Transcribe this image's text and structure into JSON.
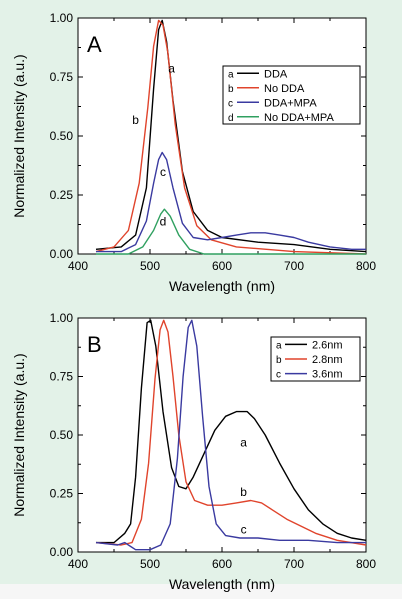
{
  "chart_data": [
    {
      "type": "line",
      "panel_label": "A",
      "xlabel": "Wavelength (nm)",
      "ylabel": "Normalized Intensity (a.u.)",
      "xlim": [
        400,
        800
      ],
      "ylim": [
        0,
        1.0
      ],
      "xticks": [
        400,
        500,
        600,
        700,
        800
      ],
      "yticks": [
        0.0,
        0.25,
        0.5,
        0.75,
        1.0
      ],
      "xtick_labels": [
        "400",
        "500",
        "600",
        "700",
        "800"
      ],
      "ytick_labels": [
        "0.00",
        "0.25",
        "0.50",
        "0.75",
        "1.00"
      ],
      "legend_position": "top-right",
      "series": [
        {
          "key": "a",
          "name": "DDA",
          "color": "#000000",
          "points": [
            [
              425,
              0.02
            ],
            [
              460,
              0.03
            ],
            [
              480,
              0.08
            ],
            [
              495,
              0.28
            ],
            [
              505,
              0.7
            ],
            [
              512,
              0.95
            ],
            [
              517,
              0.99
            ],
            [
              523,
              0.9
            ],
            [
              532,
              0.65
            ],
            [
              545,
              0.35
            ],
            [
              560,
              0.18
            ],
            [
              580,
              0.1
            ],
            [
              600,
              0.07
            ],
            [
              650,
              0.05
            ],
            [
              700,
              0.04
            ],
            [
              750,
              0.02
            ],
            [
              800,
              0.01
            ]
          ]
        },
        {
          "key": "b",
          "name": "No DDA",
          "color": "#e0442c",
          "points": [
            [
              425,
              0.01
            ],
            [
              450,
              0.03
            ],
            [
              470,
              0.1
            ],
            [
              485,
              0.3
            ],
            [
              497,
              0.62
            ],
            [
              505,
              0.88
            ],
            [
              512,
              0.99
            ],
            [
              518,
              0.97
            ],
            [
              525,
              0.85
            ],
            [
              535,
              0.55
            ],
            [
              548,
              0.28
            ],
            [
              565,
              0.12
            ],
            [
              585,
              0.06
            ],
            [
              620,
              0.03
            ],
            [
              700,
              0.01
            ],
            [
              800,
              0.0
            ]
          ]
        },
        {
          "key": "c",
          "name": "DDA+MPA",
          "color": "#3a3aa0",
          "points": [
            [
              425,
              0.01
            ],
            [
              460,
              0.01
            ],
            [
              480,
              0.04
            ],
            [
              495,
              0.14
            ],
            [
              505,
              0.3
            ],
            [
              512,
              0.4
            ],
            [
              517,
              0.43
            ],
            [
              523,
              0.4
            ],
            [
              532,
              0.28
            ],
            [
              545,
              0.13
            ],
            [
              560,
              0.07
            ],
            [
              580,
              0.06
            ],
            [
              600,
              0.07
            ],
            [
              620,
              0.08
            ],
            [
              640,
              0.09
            ],
            [
              660,
              0.09
            ],
            [
              680,
              0.08
            ],
            [
              700,
              0.07
            ],
            [
              720,
              0.05
            ],
            [
              750,
              0.03
            ],
            [
              780,
              0.02
            ],
            [
              800,
              0.02
            ]
          ]
        },
        {
          "key": "d",
          "name": "No DDA+MPA",
          "color": "#30a060",
          "points": [
            [
              425,
              0.0
            ],
            [
              470,
              0.0
            ],
            [
              490,
              0.03
            ],
            [
              505,
              0.1
            ],
            [
              515,
              0.17
            ],
            [
              520,
              0.19
            ],
            [
              528,
              0.16
            ],
            [
              540,
              0.08
            ],
            [
              555,
              0.02
            ],
            [
              575,
              0.0
            ],
            [
              800,
              0.0
            ]
          ]
        }
      ],
      "annotations": [
        {
          "text": "a",
          "x": 530,
          "y": 0.77
        },
        {
          "text": "b",
          "x": 480,
          "y": 0.55
        },
        {
          "text": "c",
          "x": 518,
          "y": 0.33
        },
        {
          "text": "d",
          "x": 518,
          "y": 0.12
        }
      ]
    },
    {
      "type": "line",
      "panel_label": "B",
      "xlabel": "Wavelength (nm)",
      "ylabel": "Normalized Intensity (a.u.)",
      "xlim": [
        400,
        800
      ],
      "ylim": [
        0,
        1.0
      ],
      "xticks": [
        400,
        500,
        600,
        700,
        800
      ],
      "yticks": [
        0.0,
        0.25,
        0.5,
        0.75,
        1.0
      ],
      "xtick_labels": [
        "400",
        "500",
        "600",
        "700",
        "800"
      ],
      "ytick_labels": [
        "0.00",
        "0.25",
        "0.50",
        "0.75",
        "1.00"
      ],
      "legend_position": "top-right",
      "series": [
        {
          "key": "a",
          "name": "2.6nm",
          "color": "#000000",
          "points": [
            [
              425,
              0.04
            ],
            [
              450,
              0.04
            ],
            [
              465,
              0.08
            ],
            [
              473,
              0.12
            ],
            [
              480,
              0.32
            ],
            [
              488,
              0.7
            ],
            [
              496,
              0.98
            ],
            [
              501,
              0.99
            ],
            [
              508,
              0.88
            ],
            [
              518,
              0.6
            ],
            [
              530,
              0.36
            ],
            [
              540,
              0.28
            ],
            [
              550,
              0.27
            ],
            [
              560,
              0.32
            ],
            [
              575,
              0.42
            ],
            [
              590,
              0.52
            ],
            [
              605,
              0.58
            ],
            [
              620,
              0.6
            ],
            [
              635,
              0.6
            ],
            [
              645,
              0.57
            ],
            [
              660,
              0.5
            ],
            [
              680,
              0.38
            ],
            [
              700,
              0.27
            ],
            [
              720,
              0.18
            ],
            [
              740,
              0.12
            ],
            [
              760,
              0.08
            ],
            [
              780,
              0.06
            ],
            [
              800,
              0.05
            ]
          ]
        },
        {
          "key": "b",
          "name": "2.8nm",
          "color": "#e0442c",
          "points": [
            [
              425,
              0.04
            ],
            [
              460,
              0.03
            ],
            [
              475,
              0.04
            ],
            [
              488,
              0.14
            ],
            [
              498,
              0.38
            ],
            [
              507,
              0.74
            ],
            [
              514,
              0.95
            ],
            [
              519,
              0.99
            ],
            [
              525,
              0.94
            ],
            [
              532,
              0.75
            ],
            [
              540,
              0.5
            ],
            [
              550,
              0.3
            ],
            [
              562,
              0.22
            ],
            [
              580,
              0.2
            ],
            [
              600,
              0.2
            ],
            [
              620,
              0.21
            ],
            [
              640,
              0.22
            ],
            [
              655,
              0.21
            ],
            [
              670,
              0.18
            ],
            [
              690,
              0.14
            ],
            [
              710,
              0.11
            ],
            [
              730,
              0.08
            ],
            [
              760,
              0.05
            ],
            [
              800,
              0.03
            ]
          ]
        },
        {
          "key": "c",
          "name": "3.6nm",
          "color": "#3a3aa0",
          "points": [
            [
              425,
              0.04
            ],
            [
              455,
              0.03
            ],
            [
              465,
              0.04
            ],
            [
              470,
              0.03
            ],
            [
              480,
              0.01
            ],
            [
              500,
              0.01
            ],
            [
              515,
              0.03
            ],
            [
              528,
              0.12
            ],
            [
              538,
              0.4
            ],
            [
              546,
              0.75
            ],
            [
              553,
              0.96
            ],
            [
              558,
              0.99
            ],
            [
              565,
              0.88
            ],
            [
              573,
              0.58
            ],
            [
              582,
              0.28
            ],
            [
              592,
              0.12
            ],
            [
              605,
              0.07
            ],
            [
              625,
              0.06
            ],
            [
              650,
              0.06
            ],
            [
              680,
              0.05
            ],
            [
              720,
              0.05
            ],
            [
              760,
              0.04
            ],
            [
              800,
              0.04
            ]
          ]
        }
      ],
      "annotations": [
        {
          "text": "a",
          "x": 630,
          "y": 0.45
        },
        {
          "text": "b",
          "x": 630,
          "y": 0.24
        },
        {
          "text": "c",
          "x": 630,
          "y": 0.08
        }
      ]
    }
  ]
}
